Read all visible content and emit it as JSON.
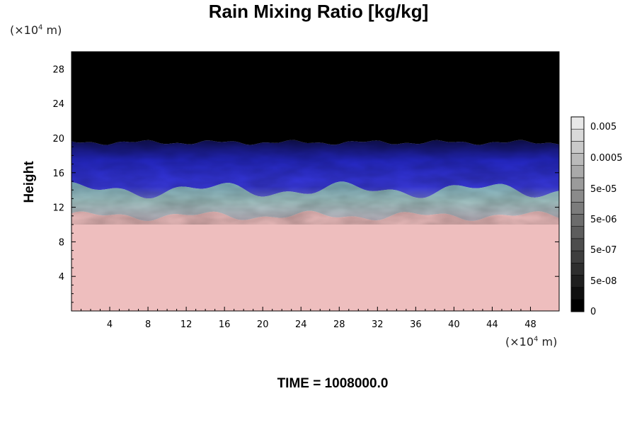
{
  "chart_data": {
    "type": "heatmap",
    "title": "Rain Mixing Ratio [kg/kg]",
    "ylabel": "Height",
    "y_unit": {
      "prefix": "(×10",
      "exp": "4",
      "suffix": " m)"
    },
    "x_unit": {
      "prefix": "(×10",
      "exp": "4",
      "suffix": " m)"
    },
    "footer": "TIME = 1008000.0",
    "xlim": [
      0,
      51
    ],
    "ylim": [
      0,
      30
    ],
    "x_ticks": [
      4,
      8,
      12,
      16,
      20,
      24,
      28,
      32,
      36,
      40,
      44,
      48
    ],
    "y_ticks": [
      4,
      8,
      12,
      16,
      20,
      24,
      28
    ],
    "colorbar": {
      "labels": [
        "0.005",
        "0.0005",
        "5e-05",
        "5e-06",
        "5e-07",
        "5e-08",
        "0"
      ],
      "levels": 16
    },
    "layers": [
      {
        "name": "lower",
        "top_height": 11,
        "color": "#eebebe"
      },
      {
        "name": "transition",
        "top_height": 14,
        "color": "#9cc6c8"
      },
      {
        "name": "upper",
        "top_height": 19.5,
        "color": "#2d2fd8"
      },
      {
        "name": "above",
        "top_height": 30,
        "color": "#000000"
      }
    ]
  }
}
